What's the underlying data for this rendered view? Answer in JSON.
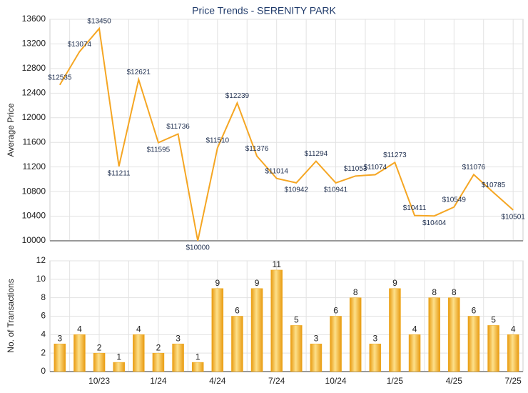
{
  "chart_data": [
    {
      "type": "line",
      "title": "Price Trends - SERENITY PARK",
      "ylabel": "Average Price",
      "ylim": [
        10000,
        13600
      ],
      "yticks": [
        10000,
        10400,
        10800,
        11200,
        11600,
        12000,
        12400,
        12800,
        13200,
        13600
      ],
      "grid": true,
      "series": [
        {
          "name": "Average Price",
          "color": "#f5a623",
          "values": [
            12535,
            13074,
            13450,
            11211,
            12621,
            11595,
            11736,
            10000,
            11510,
            12239,
            11376,
            11014,
            10942,
            11294,
            10941,
            11053,
            11074,
            11273,
            10411,
            10404,
            10549,
            11076,
            10785,
            10501
          ],
          "value_labels": [
            "$12535",
            "$13074",
            "$13450",
            "$11211",
            "$12621",
            "$11595",
            "$11736",
            "$10000",
            "$11510",
            "$12239",
            "$11376",
            "$11014",
            "$10942",
            "$11294",
            "$10941",
            "$11053",
            "$11074",
            "$11273",
            "$10411",
            "$10404",
            "$10549",
            "$11076",
            "$10785",
            "$10501"
          ]
        }
      ]
    },
    {
      "type": "bar",
      "ylabel": "No. of Transactions",
      "categories": [
        null,
        null,
        "10/23",
        null,
        null,
        "1/24",
        null,
        null,
        "4/24",
        null,
        null,
        "7/24",
        null,
        null,
        "10/24",
        null,
        null,
        "1/25",
        null,
        null,
        "4/25",
        null,
        null,
        "7/25"
      ],
      "ylim": [
        0,
        12
      ],
      "yticks": [
        0,
        2,
        4,
        6,
        8,
        10,
        12
      ],
      "grid": true,
      "series": [
        {
          "name": "No. of Transactions",
          "color": "#f0a818",
          "values": [
            3,
            4,
            2,
            1,
            4,
            2,
            3,
            1,
            9,
            6,
            9,
            11,
            5,
            3,
            6,
            8,
            3,
            9,
            4,
            8,
            8,
            6,
            5,
            4
          ]
        }
      ]
    }
  ]
}
